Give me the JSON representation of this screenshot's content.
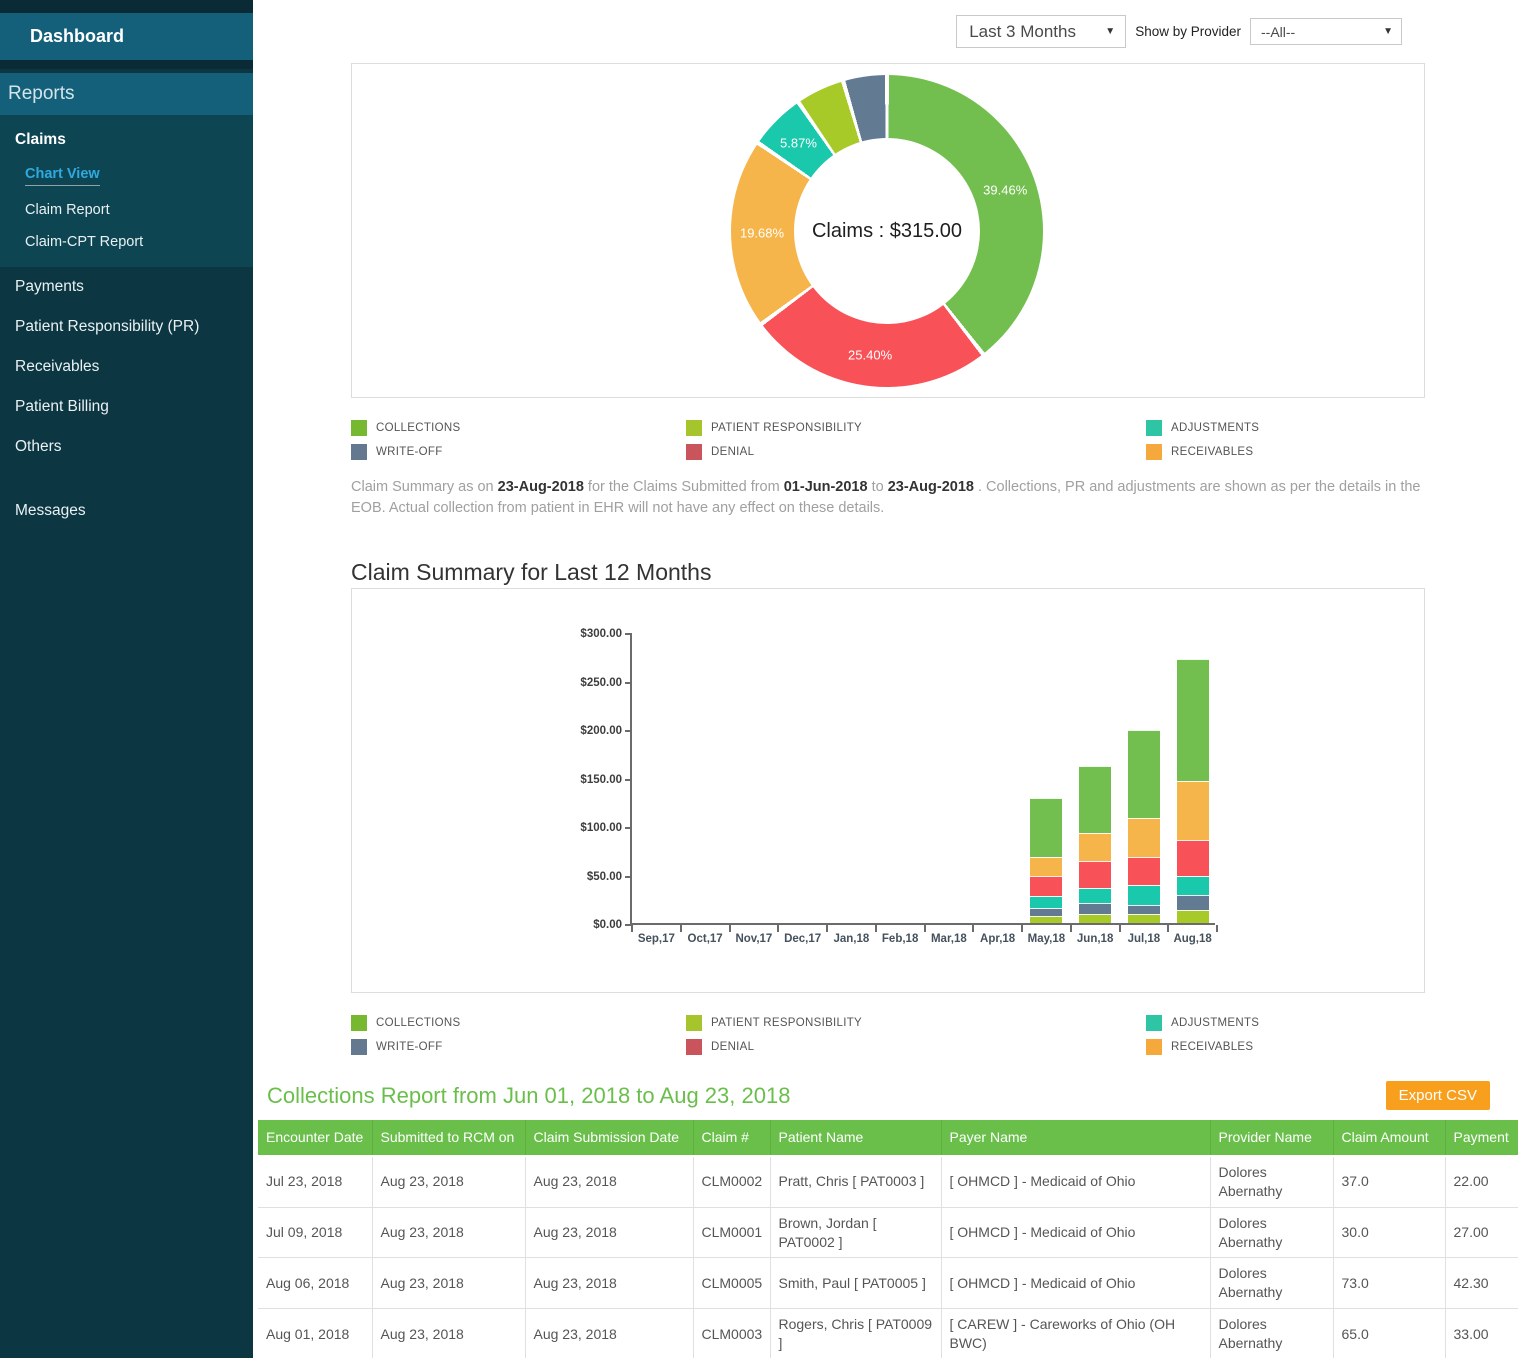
{
  "sidebar": {
    "dashboard_label": "Dashboard",
    "reports_label": "Reports",
    "items": [
      {
        "label": "Claims",
        "style": "section-head"
      },
      {
        "label": "Chart View",
        "style": "sub",
        "active": true
      },
      {
        "label": "Claim Report",
        "style": "sub"
      },
      {
        "label": "Claim-CPT Report",
        "style": "sub"
      },
      {
        "label": "Payments",
        "style": "top"
      },
      {
        "label": "Patient Responsibility (PR)",
        "style": "top"
      },
      {
        "label": "Receivables",
        "style": "top"
      },
      {
        "label": "Patient Billing",
        "style": "top"
      },
      {
        "label": "Others",
        "style": "top"
      },
      {
        "label": "Messages",
        "style": "top",
        "gap_before": true
      }
    ]
  },
  "toolbar": {
    "period_value": "Last 3 Months",
    "provider_label": "Show by Provider",
    "provider_value": "--All--"
  },
  "colors": {
    "accent_green": "#6abf4a",
    "button_orange": "#f8a01e",
    "active_link_cyan": "#2fa9e0",
    "sidebar_bg": "#0c3642",
    "sidebar_band": "#14607a"
  },
  "legend": [
    {
      "label": "COLLECTIONS",
      "color": "#76b82f"
    },
    {
      "label": "PATIENT RESPONSIBILITY",
      "color": "#a6c42c"
    },
    {
      "label": "ADJUSTMENTS",
      "color": "#2ec5a5"
    },
    {
      "label": "WRITE-OFF",
      "color": "#64798f"
    },
    {
      "label": "DENIAL",
      "color": "#c9545c"
    },
    {
      "label": "RECEIVABLES",
      "color": "#f5a93d"
    }
  ],
  "chart_data": [
    {
      "type": "pie",
      "donut": true,
      "center_label": "Claims : $315.00",
      "legend_position": "bottom",
      "segments": [
        {
          "label": "COLLECTIONS",
          "color": "#72bf4f",
          "value_pct": 39.46,
          "show_pct": true
        },
        {
          "label": "DENIAL",
          "color": "#f85157",
          "value_pct": 25.4,
          "show_pct": true
        },
        {
          "label": "RECEIVABLES",
          "color": "#f5b54a",
          "value_pct": 19.68,
          "show_pct": true
        },
        {
          "label": "ADJUSTMENTS",
          "color": "#1ac8ab",
          "value_pct": 5.87,
          "show_pct": true
        },
        {
          "label": "PATIENT RESPONSIBILITY",
          "color": "#a8ca28",
          "value_pct": 5.06,
          "show_pct": false
        },
        {
          "label": "WRITE-OFF",
          "color": "#637b92",
          "value_pct": 4.53,
          "show_pct": false
        }
      ]
    },
    {
      "type": "bar",
      "stacked": true,
      "title": "Claim Summary for Last 12 Months",
      "categories": [
        "Sep,17",
        "Oct,17",
        "Nov,17",
        "Dec,17",
        "Jan,18",
        "Feb,18",
        "Mar,18",
        "Apr,18",
        "May,18",
        "Jun,18",
        "Jul,18",
        "Aug,18"
      ],
      "ylim": [
        0,
        300
      ],
      "ytick_step": 50,
      "ytick_prefix": "$",
      "grid": false,
      "series": [
        {
          "name": "PATIENT RESPONSIBILITY",
          "color": "#a8ca28",
          "values": [
            0,
            0,
            0,
            0,
            0,
            0,
            0,
            0,
            7,
            9,
            9,
            13.5
          ]
        },
        {
          "name": "WRITE-OFF",
          "color": "#637b92",
          "values": [
            0,
            0,
            0,
            0,
            0,
            0,
            0,
            0,
            8.5,
            12,
            10,
            15.5
          ]
        },
        {
          "name": "ADJUSTMENTS",
          "color": "#1ac8ab",
          "values": [
            0,
            0,
            0,
            0,
            0,
            0,
            0,
            0,
            12,
            15,
            20,
            19
          ]
        },
        {
          "name": "DENIAL",
          "color": "#f85157",
          "values": [
            0,
            0,
            0,
            0,
            0,
            0,
            0,
            0,
            20.5,
            28,
            29,
            37.5
          ]
        },
        {
          "name": "RECEIVABLES",
          "color": "#f5b54a",
          "values": [
            0,
            0,
            0,
            0,
            0,
            0,
            0,
            0,
            20.5,
            29,
            40,
            61
          ]
        },
        {
          "name": "COLLECTIONS",
          "color": "#72bf4f",
          "values": [
            0,
            0,
            0,
            0,
            0,
            0,
            0,
            0,
            60,
            69,
            91,
            125.5
          ]
        }
      ]
    }
  ],
  "note_parts": [
    {
      "text": "Claim Summary as on ",
      "bold": false
    },
    {
      "text": "23-Aug-2018",
      "bold": true
    },
    {
      "text": " for the Claims Submitted from ",
      "bold": false
    },
    {
      "text": "01-Jun-2018",
      "bold": true
    },
    {
      "text": " to ",
      "bold": false
    },
    {
      "text": "23-Aug-2018",
      "bold": true
    },
    {
      "text": " . Collections, PR and adjustments are shown as per the details in the EOB. Actual collection from patient in EHR will not have any effect on these details.",
      "bold": false
    }
  ],
  "collections": {
    "title": "Collections Report from Jun 01, 2018 to Aug 23, 2018",
    "export_label": "Export CSV",
    "table": {
      "headers": [
        "Encounter Date",
        "Submitted to RCM on",
        "Claim Submission Date",
        "Claim #",
        "Patient Name",
        "Payer Name",
        "Provider Name",
        "Claim Amount",
        "Payment"
      ],
      "rows": [
        [
          "Jul 23, 2018",
          "Aug 23, 2018",
          "Aug 23, 2018",
          "CLM0002",
          "Pratt, Chris [ PAT0003 ]",
          "[ OHMCD ] - Medicaid of Ohio",
          "Dolores Abernathy",
          "37.0",
          "22.00"
        ],
        [
          "Jul 09, 2018",
          "Aug 23, 2018",
          "Aug 23, 2018",
          "CLM0001",
          "Brown, Jordan [ PAT0002 ]",
          "[ OHMCD ] - Medicaid of Ohio",
          "Dolores Abernathy",
          "30.0",
          "27.00"
        ],
        [
          "Aug 06, 2018",
          "Aug 23, 2018",
          "Aug 23, 2018",
          "CLM0005",
          "Smith, Paul [ PAT0005 ]",
          "[ OHMCD ] - Medicaid of Ohio",
          "Dolores Abernathy",
          "73.0",
          "42.30"
        ],
        [
          "Aug 01, 2018",
          "Aug 23, 2018",
          "Aug 23, 2018",
          "CLM0003",
          "Rogers, Chris [ PAT0009 ]",
          "[ CAREW ] - Careworks of Ohio (OH BWC)",
          "Dolores Abernathy",
          "65.0",
          "33.00"
        ]
      ]
    }
  }
}
